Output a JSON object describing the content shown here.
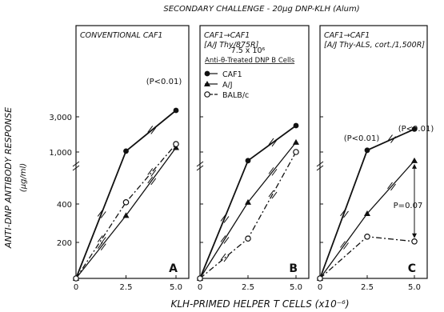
{
  "figure": {
    "title": "SECONDARY CHALLENGE - 20μg DNP-KLH (Alum)",
    "ylabel": "ANTI-DNP ANTIBODY RESPONSE",
    "ylabel_unit": "(μg/ml)",
    "xlabel": "KLH-PRIMED HELPER T CELLS (x10⁻⁶)"
  },
  "panels": [
    {
      "title_lines": [
        "CONVENTIONAL CAF1"
      ],
      "letter": "A"
    },
    {
      "title_lines": [
        "CAF1→CAF1",
        "[A/J Thy/875R]"
      ],
      "letter": "B"
    },
    {
      "title_lines": [
        "CAF1→CAF1",
        "[A/J Thy-ALS, cort./1,500R]"
      ],
      "letter": "C"
    }
  ],
  "legend": {
    "header_line1": "7.5 x 10⁶",
    "header_line2": "Anti-θ-Treated DNP B Cells",
    "items": [
      {
        "label": "CAF1",
        "marker": "filled-circle"
      },
      {
        "label": "A/J",
        "marker": "filled-triangle"
      },
      {
        "label": "BALB/c",
        "marker": "open-circle"
      }
    ]
  },
  "annotations": {
    "p_a": "(P<0.01)",
    "p_c1": "(P<0.01)",
    "p_c2": "(P<0.01)",
    "p_c3": "P=0.07"
  },
  "chart_data": [
    {
      "type": "line",
      "panel": "A",
      "title": "CONVENTIONAL CAF1",
      "x": [
        0,
        2.5,
        5.0
      ],
      "xticks": [
        "0",
        "2.5",
        "5.0"
      ],
      "yticks": [
        "200",
        "400",
        "1,000",
        "3,000"
      ],
      "series": [
        {
          "name": "CAF1",
          "values": [
            0,
            1050,
            4200
          ]
        },
        {
          "name": "A/J",
          "values": [
            0,
            340,
            1250
          ]
        },
        {
          "name": "BALB/c",
          "values": [
            0,
            420,
            1450
          ]
        }
      ]
    },
    {
      "type": "line",
      "panel": "B",
      "title": "CAF1→CAF1 [A/J Thy/875R]",
      "x": [
        0,
        2.5,
        5.0
      ],
      "xticks": [
        "0",
        "2.5",
        "5.0"
      ],
      "series": [
        {
          "name": "CAF1",
          "values": [
            0,
            900,
            2500
          ]
        },
        {
          "name": "A/J",
          "values": [
            0,
            420,
            1550
          ]
        },
        {
          "name": "BALB/c",
          "values": [
            0,
            220,
            1000
          ]
        }
      ]
    },
    {
      "type": "line",
      "panel": "C",
      "title": "CAF1→CAF1 [A/J Thy-ALS, cort./1,500R]",
      "x": [
        0,
        2.5,
        5.0
      ],
      "xticks": [
        "0",
        "2.5",
        "5.0"
      ],
      "series": [
        {
          "name": "CAF1",
          "values": [
            0,
            1100,
            2300
          ]
        },
        {
          "name": "A/J",
          "values": [
            0,
            350,
            900
          ]
        },
        {
          "name": "BALB/c",
          "values": [
            0,
            230,
            205
          ]
        }
      ]
    }
  ]
}
